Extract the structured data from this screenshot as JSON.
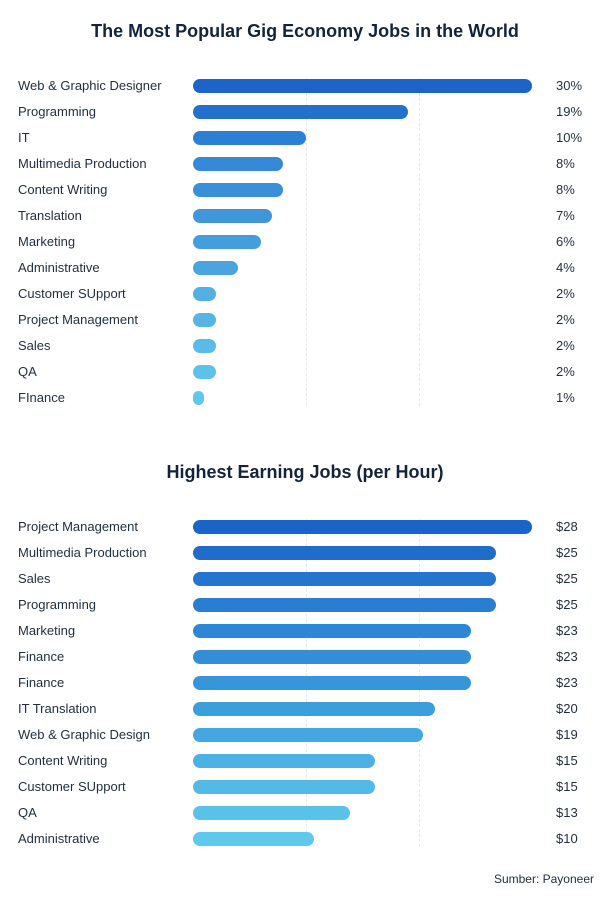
{
  "chart_data": [
    {
      "type": "bar",
      "orientation": "horizontal",
      "title": "The Most Popular Gig Economy Jobs in the World",
      "categories": [
        "Web & Graphic Designer",
        "Programming",
        "IT",
        "Multimedia Production",
        "Content Writing",
        "Translation",
        "Marketing",
        "Administrative",
        "Customer SUpport",
        "Project Management",
        "Sales",
        "QA",
        "FInance"
      ],
      "values": [
        30,
        19,
        10,
        8,
        8,
        7,
        6,
        4,
        2,
        2,
        2,
        2,
        1
      ],
      "value_labels": [
        "30%",
        "19%",
        "10%",
        "8%",
        "8%",
        "7%",
        "6%",
        "4%",
        "2%",
        "2%",
        "2%",
        "2%",
        "1%"
      ],
      "unit": "%",
      "xlim": [
        0,
        30
      ],
      "grid": true,
      "colors": [
        "#1d64c8",
        "#2272cd",
        "#2c7fd3",
        "#3589d6",
        "#3a90d8",
        "#3f96da",
        "#449ddc",
        "#4aa4df",
        "#52b0e3",
        "#55b5e5",
        "#58bbe8",
        "#5cc2ea",
        "#5fc8ec"
      ]
    },
    {
      "type": "bar",
      "orientation": "horizontal",
      "title": "Highest Earning Jobs (per Hour)",
      "categories": [
        "Project Management",
        "Multimedia Production",
        "Sales",
        "Programming",
        "Marketing",
        "Finance",
        "Finance",
        "IT Translation",
        "Web & Graphic Design",
        "Content Writing",
        "Customer SUpport",
        "QA",
        "Administrative"
      ],
      "values": [
        28,
        25,
        25,
        25,
        23,
        23,
        23,
        20,
        19,
        15,
        15,
        13,
        10
      ],
      "value_labels": [
        "$28",
        "$25",
        "$25",
        "$25",
        "$23",
        "$23",
        "$23",
        "$20",
        "$19",
        "$15",
        "$15",
        "$13",
        "$10"
      ],
      "unit": "$",
      "xlim": [
        0,
        28
      ],
      "grid": true,
      "colors": [
        "#1a63c7",
        "#1f6ccb",
        "#2475cf",
        "#297ed2",
        "#2e87d5",
        "#338ed7",
        "#3795d9",
        "#3d9edc",
        "#44a7df",
        "#4cb1e3",
        "#53b9e6",
        "#5ac1e9",
        "#5fc8ec"
      ]
    }
  ],
  "source": "Sumber: Payoneer"
}
